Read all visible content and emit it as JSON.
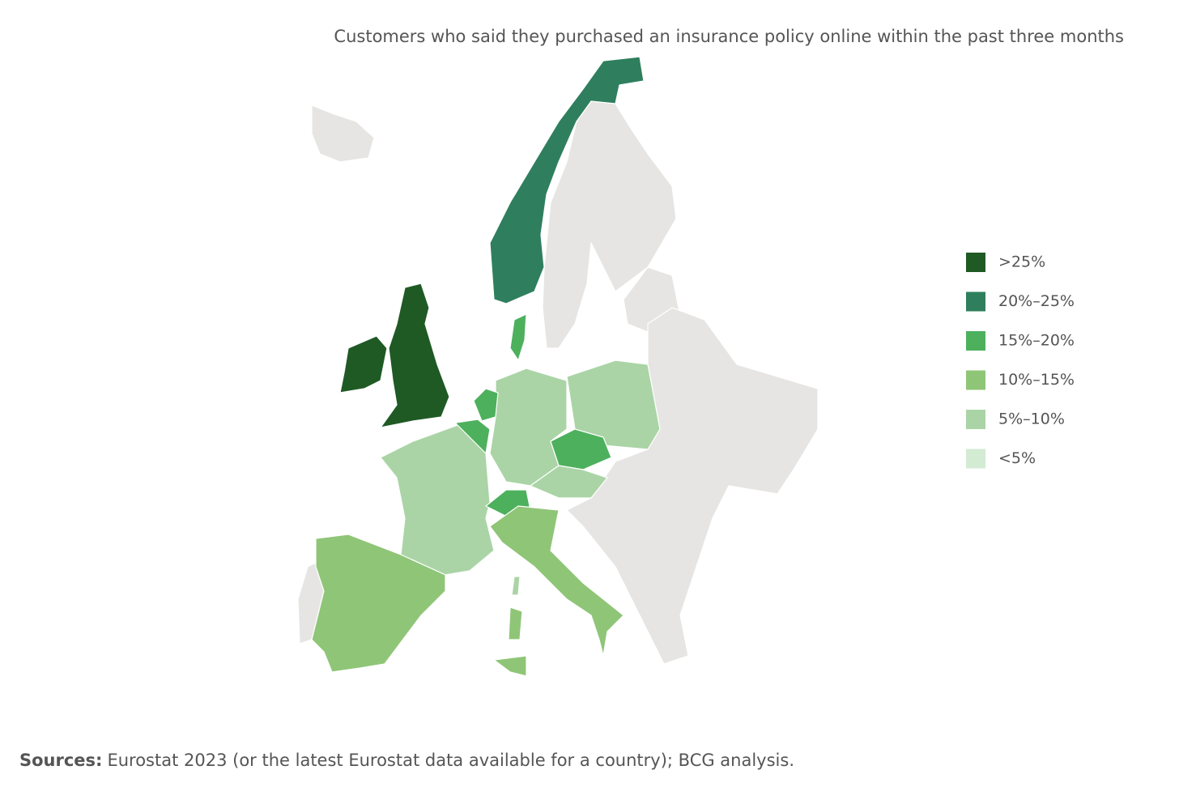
{
  "title": "Customers who said they purchased an insurance policy online within the past three months",
  "legend": {
    "items": [
      {
        "label": ">25%",
        "color": "#1f5a25"
      },
      {
        "label": "20%–25%",
        "color": "#2f7f5e"
      },
      {
        "label": "15%–20%",
        "color": "#4db05d"
      },
      {
        "label": "10%–15%",
        "color": "#8fc577"
      },
      {
        "label": "5%–10%",
        "color": "#aad4a6"
      },
      {
        "label": "<5%",
        "color": "#d3ead3"
      }
    ]
  },
  "sources": {
    "label": "Sources:",
    "text": "Eurostat 2023 (or the latest Eurostat data available for a country); BCG analysis."
  }
}
